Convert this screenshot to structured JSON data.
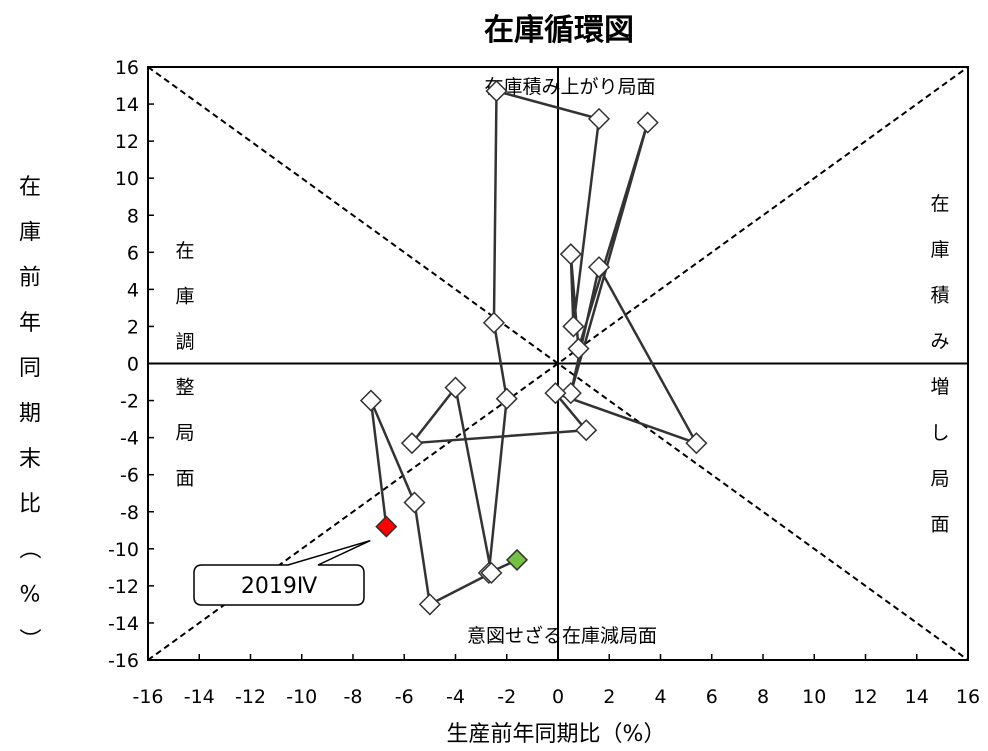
{
  "chart_data": {
    "type": "scatter",
    "title": "在庫循環図",
    "xlabel": "生産前年同期比（%）",
    "ylabel": "在庫前年同期末比（%）",
    "xlim": [
      -16,
      16
    ],
    "ylim": [
      -16,
      16
    ],
    "xticks": [
      "-16",
      "-14",
      "-12",
      "-10",
      "-8",
      "-6",
      "-4",
      "-2",
      "0",
      "2",
      "4",
      "6",
      "8",
      "10",
      "12",
      "14",
      "16"
    ],
    "yticks": [
      "16",
      "14",
      "12",
      "10",
      "8",
      "6",
      "4",
      "2",
      "0",
      "-2",
      "-4",
      "-6",
      "-8",
      "-10",
      "-12",
      "-14",
      "-16"
    ],
    "grid": false,
    "connected": true,
    "points": [
      {
        "x": -1.6,
        "y": -10.6
      },
      {
        "x": -2.7,
        "y": -11.3
      },
      {
        "x": -2.0,
        "y": -1.9
      },
      {
        "x": -2.5,
        "y": 2.2
      },
      {
        "x": -2.4,
        "y": 14.7
      },
      {
        "x": 1.6,
        "y": 13.2
      },
      {
        "x": 0.6,
        "y": 2.0
      },
      {
        "x": 0.5,
        "y": 5.9
      },
      {
        "x": 0.8,
        "y": 0.8
      },
      {
        "x": 3.5,
        "y": 13.0
      },
      {
        "x": 0.5,
        "y": -1.6
      },
      {
        "x": 1.6,
        "y": 5.2
      },
      {
        "x": 5.4,
        "y": -4.3
      },
      {
        "x": -0.1,
        "y": -1.6
      },
      {
        "x": 1.1,
        "y": -3.6
      },
      {
        "x": -5.7,
        "y": -4.3
      },
      {
        "x": -4.0,
        "y": -1.3
      },
      {
        "x": -2.6,
        "y": -11.3
      },
      {
        "x": -5.0,
        "y": -13.0
      },
      {
        "x": -5.6,
        "y": -7.5
      },
      {
        "x": -7.3,
        "y": -2.0
      },
      {
        "x": -6.7,
        "y": -8.8
      }
    ],
    "first_point_color": "#76c043",
    "last_point_color": "#ff0000",
    "marker_fill": "#ffffff",
    "line_color": "#333333",
    "callout": {
      "label": "2019Ⅳ",
      "target_index": 21
    },
    "reference_lines": [
      {
        "from": [
          -16,
          -16
        ],
        "to": [
          16,
          16
        ],
        "style": "dashed"
      },
      {
        "from": [
          -16,
          16
        ],
        "to": [
          16,
          -16
        ],
        "style": "dashed"
      }
    ],
    "regions": {
      "top": "在庫積み上がり局面",
      "bottom": "意図せざる在庫減局面",
      "left": [
        "在",
        "庫",
        "調",
        "整",
        "局",
        "面"
      ],
      "right": [
        "在",
        "庫",
        "積",
        "み",
        "増",
        "し",
        "局",
        "面"
      ]
    }
  }
}
